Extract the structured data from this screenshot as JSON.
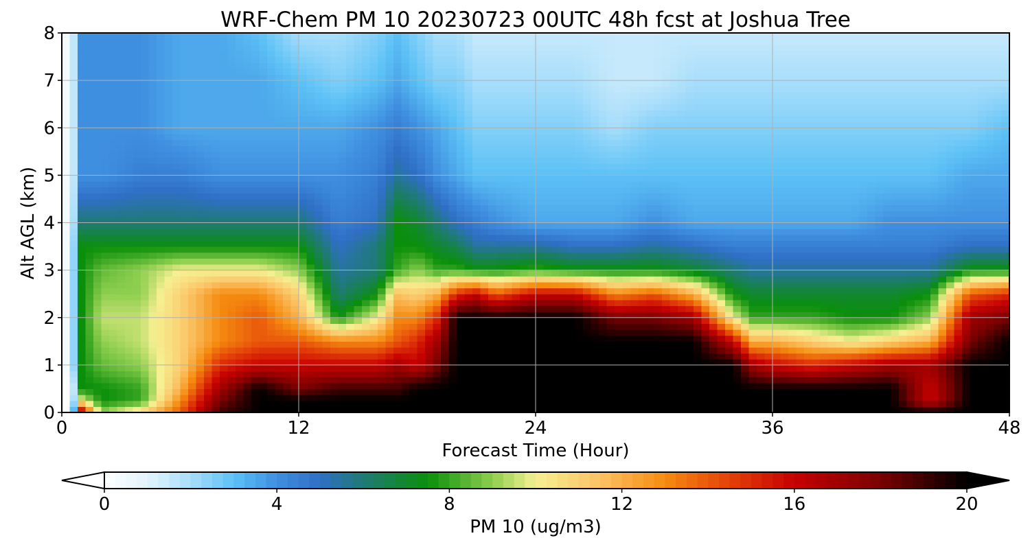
{
  "chart_data": {
    "type": "heatmap",
    "title": "WRF-Chem PM 10  20230723 00UTC 48h fcst at Joshua Tree",
    "xlabel": "Forecast Time (Hour)",
    "ylabel": "Alt AGL (km)",
    "xlim": [
      0,
      48
    ],
    "ylim": [
      0,
      8
    ],
    "x_ticks": [
      "0",
      "12",
      "24",
      "36",
      "48"
    ],
    "y_ticks": [
      "0",
      "1",
      "2",
      "3",
      "4",
      "5",
      "6",
      "7",
      "8"
    ],
    "grid": true,
    "colorbar": {
      "label": "PM 10  (ug/m3)",
      "range": [
        0,
        20
      ],
      "ticks": [
        "0",
        "4",
        "8",
        "12",
        "16",
        "20"
      ],
      "extend": "both",
      "colors": [
        "#ffffff",
        "#e2f4fc",
        "#a9defb",
        "#5cc1f6",
        "#3f8fe0",
        "#2f6fc6",
        "#1f7a74",
        "#0a8f0a",
        "#8fcf4f",
        "#f6f092",
        "#fbc264",
        "#f58b0f",
        "#e34009",
        "#c70000",
        "#7a0000",
        "#000000"
      ],
      "stops": [
        0,
        1,
        2,
        3,
        4,
        5,
        6,
        7.5,
        9,
        10,
        11.5,
        13,
        14.5,
        16,
        18,
        20
      ]
    },
    "x": [
      0,
      0.5,
      1,
      2,
      4,
      6,
      8,
      10,
      12,
      14,
      16,
      17,
      18,
      19,
      20,
      21,
      22,
      24,
      26,
      28,
      30,
      32,
      34,
      35,
      36,
      38,
      40,
      42,
      44,
      46,
      48
    ],
    "y": [
      0,
      0.25,
      0.5,
      1,
      1.5,
      2,
      2.5,
      3,
      3.5,
      4,
      5,
      6,
      7,
      8
    ],
    "z": [
      [
        0,
        0,
        17,
        9,
        11,
        14,
        19,
        20,
        20,
        20,
        20,
        20,
        20,
        20,
        20,
        20,
        20,
        20,
        20,
        20,
        20,
        20,
        20,
        20,
        20,
        20,
        20,
        20,
        20,
        20,
        20
      ],
      [
        0,
        0,
        10,
        7.5,
        8,
        13,
        18,
        20,
        20,
        20,
        20,
        20,
        20,
        20,
        20,
        20,
        20,
        20,
        20,
        20,
        20,
        20,
        20,
        20,
        20,
        20,
        20,
        20,
        16,
        20,
        20
      ],
      [
        0,
        0,
        7.5,
        7.5,
        8,
        12,
        17,
        20,
        18,
        19,
        19,
        19,
        20,
        20,
        20,
        20,
        20,
        20,
        20,
        20,
        20,
        20,
        20,
        20,
        20,
        20,
        20,
        20,
        16,
        20,
        20
      ],
      [
        0,
        1,
        7.5,
        8.5,
        9,
        11,
        15,
        16,
        16,
        16,
        16,
        17,
        16,
        18,
        20,
        20,
        20,
        20,
        20,
        20,
        20,
        20,
        20,
        17,
        16,
        15,
        16,
        17,
        17,
        20,
        20
      ],
      [
        0,
        1,
        7.5,
        9,
        9.5,
        11,
        13,
        14,
        14,
        13,
        13,
        14,
        15,
        17,
        20,
        20,
        20,
        20,
        20,
        20,
        20,
        20,
        16,
        12,
        12,
        11,
        10,
        11,
        12,
        18,
        20
      ],
      [
        0,
        1,
        7.5,
        9.5,
        9.5,
        11,
        13,
        14,
        12,
        7.5,
        10,
        13,
        13,
        15,
        20,
        20,
        20,
        20,
        20,
        18,
        18,
        17,
        10,
        8,
        8,
        8,
        7.5,
        7.5,
        9,
        17,
        18
      ],
      [
        0,
        1,
        7.5,
        9,
        9,
        11,
        13,
        13,
        11,
        6,
        7.5,
        11.5,
        11,
        12,
        15,
        16,
        14,
        16,
        16,
        13,
        14,
        12,
        7.5,
        7,
        7,
        7,
        7,
        7,
        7.5,
        14,
        15
      ],
      [
        0,
        1,
        7.5,
        8.5,
        9,
        10,
        10,
        10,
        9,
        5.5,
        6,
        8,
        9,
        8,
        8,
        7.5,
        7.5,
        8,
        7.5,
        7.5,
        7.5,
        7,
        6,
        5.5,
        5.5,
        5.5,
        5.5,
        5.5,
        5.5,
        7.5,
        7.5
      ],
      [
        0,
        1,
        7.5,
        7.5,
        7.5,
        7.5,
        7.5,
        7.5,
        7.5,
        5,
        6,
        7.5,
        7.5,
        7,
        6.5,
        5.5,
        5.5,
        5.5,
        5,
        5,
        5.5,
        5,
        4.5,
        4.5,
        4.5,
        4.5,
        4.5,
        4.5,
        4.5,
        5,
        5
      ],
      [
        0,
        1,
        6,
        6,
        6,
        6,
        6,
        6,
        6,
        4.5,
        5,
        7.5,
        7,
        6,
        5,
        4.5,
        4,
        3.5,
        3.5,
        3.5,
        4,
        3.5,
        3.5,
        3.5,
        3.5,
        3.5,
        3.5,
        4,
        4,
        4,
        4
      ],
      [
        0,
        1,
        4,
        4,
        4.5,
        4.5,
        4,
        4,
        4,
        4,
        4.5,
        5.5,
        5,
        4,
        3.5,
        3,
        3,
        3,
        3,
        3,
        3,
        3,
        3,
        3,
        3,
        3,
        3,
        3,
        3,
        3.5,
        3.5
      ],
      [
        0,
        1,
        4,
        4,
        4,
        3.5,
        3.5,
        3.5,
        3.5,
        3.5,
        4,
        4.5,
        4,
        3.5,
        3,
        2.5,
        2.5,
        2.5,
        2.5,
        2,
        2.5,
        2.5,
        2.5,
        2.5,
        2.5,
        2.5,
        2.5,
        2.5,
        2.5,
        2.5,
        3
      ],
      [
        0,
        1,
        4,
        4,
        4,
        3.5,
        3.5,
        3.5,
        3,
        2.5,
        3,
        3.5,
        3,
        2.5,
        2.5,
        2,
        2,
        2,
        2,
        1.5,
        1.5,
        2,
        2,
        2,
        2,
        2,
        2,
        2,
        2,
        2,
        2
      ],
      [
        0,
        1,
        4,
        4,
        4,
        3.5,
        3.5,
        3,
        2,
        2,
        2.5,
        3,
        2.5,
        2,
        2,
        1.5,
        1.5,
        1.5,
        1.5,
        1.5,
        1.5,
        1.5,
        1.5,
        1.5,
        1.5,
        1.5,
        1.5,
        1.5,
        1.5,
        1.5,
        1.5
      ]
    ]
  }
}
